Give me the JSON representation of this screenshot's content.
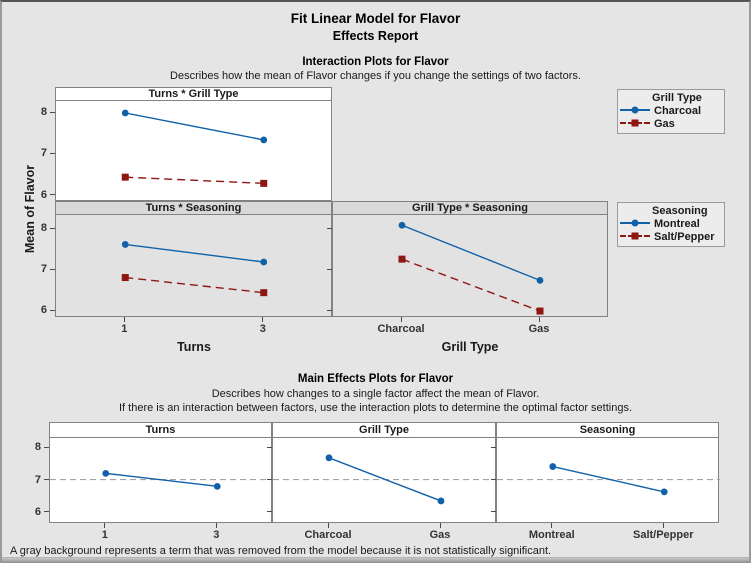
{
  "header": {
    "title": "Fit Linear Model for Flavor",
    "subtitle": "Effects Report"
  },
  "interaction": {
    "title": "Interaction Plots for Flavor",
    "description": "Describes how the mean of Flavor changes if you change the settings of two factors."
  },
  "main_effects": {
    "title": "Main Effects Plots for Flavor",
    "description1": "Describes how changes to a single factor affect the mean of Flavor.",
    "description2": "If there is an interaction between factors, use the interaction plots to determine the optimal factor settings."
  },
  "footnote": "A gray background represents a term that was removed from the model because it is not statistically significant.",
  "colors": {
    "series1": "#1161A8",
    "series2": "#8E1713",
    "reference_line": "#A3A3A3",
    "figure_bg": "#E5E5E5",
    "kept_panel_bg": "#FFFFFF",
    "removed_panel_bg": "#E2E2E2",
    "removed_band_bg": "#D9D9D9",
    "panel_border": "#828282"
  },
  "legends": [
    {
      "title": "Grill Type",
      "items": [
        {
          "label": "Charcoal",
          "marker": "circle",
          "line": "solid",
          "color_key": "series1"
        },
        {
          "label": "Gas",
          "marker": "square",
          "line": "dashed",
          "color_key": "series2"
        }
      ]
    },
    {
      "title": "Seasoning",
      "items": [
        {
          "label": "Montreal",
          "marker": "circle",
          "line": "solid",
          "color_key": "series1"
        },
        {
          "label": "Salt/Pepper",
          "marker": "square",
          "line": "dashed",
          "color_key": "series2"
        }
      ]
    }
  ],
  "chart_data": [
    {
      "id": "turns-grill-type",
      "type": "line",
      "title": "Turns * Grill Type",
      "categories": [
        "1",
        "3"
      ],
      "ylabel": "Mean of Flavor",
      "series": [
        {
          "name": "Charcoal",
          "values": [
            8.0,
            7.35
          ],
          "line": "solid",
          "marker": "circle"
        },
        {
          "name": "Gas",
          "values": [
            6.45,
            6.3
          ],
          "line": "dashed",
          "marker": "square"
        }
      ],
      "yticks": [
        6,
        7,
        8
      ],
      "ylim": [
        5.85,
        8.29
      ],
      "removed": false
    },
    {
      "id": "turns-seasoning",
      "type": "line",
      "title": "Turns * Seasoning",
      "categories": [
        "1",
        "3"
      ],
      "xlabel": "Turns",
      "series": [
        {
          "name": "Montreal",
          "values": [
            7.63,
            7.2
          ],
          "line": "solid",
          "marker": "circle"
        },
        {
          "name": "Salt/Pepper",
          "values": [
            6.82,
            6.45
          ],
          "line": "dashed",
          "marker": "square"
        }
      ],
      "yticks": [
        6,
        7,
        8
      ],
      "ylim": [
        5.83,
        8.35
      ],
      "removed": true
    },
    {
      "id": "grill-type-seasoning",
      "type": "line",
      "title": "Grill Type * Seasoning",
      "categories": [
        "Charcoal",
        "Gas"
      ],
      "xlabel": "Grill Type",
      "series": [
        {
          "name": "Montreal",
          "values": [
            8.1,
            6.75
          ],
          "line": "solid",
          "marker": "circle"
        },
        {
          "name": "Salt/Pepper",
          "values": [
            7.27,
            6.0
          ],
          "line": "dashed",
          "marker": "square"
        }
      ],
      "yticks": [
        6,
        7,
        8
      ],
      "ylim": [
        5.83,
        8.35
      ],
      "removed": true
    },
    {
      "id": "main-turns",
      "type": "line",
      "title": "Turns",
      "categories": [
        "1",
        "3"
      ],
      "series": [
        {
          "values": [
            7.22,
            6.82
          ],
          "line": "solid",
          "marker": "circle"
        }
      ],
      "reference_line": 7.03,
      "yticks": [
        6,
        7,
        8
      ],
      "ylim": [
        5.66,
        8.31
      ],
      "removed": false
    },
    {
      "id": "main-grill-type",
      "type": "line",
      "title": "Grill Type",
      "categories": [
        "Charcoal",
        "Gas"
      ],
      "series": [
        {
          "values": [
            7.7,
            6.37
          ],
          "line": "solid",
          "marker": "circle"
        }
      ],
      "reference_line": 7.03,
      "yticks": [
        6,
        7,
        8
      ],
      "ylim": [
        5.66,
        8.31
      ],
      "removed": false
    },
    {
      "id": "main-seasoning",
      "type": "line",
      "title": "Seasoning",
      "categories": [
        "Montreal",
        "Salt/Pepper"
      ],
      "series": [
        {
          "values": [
            7.43,
            6.65
          ],
          "line": "solid",
          "marker": "circle"
        }
      ],
      "reference_line": 7.03,
      "yticks": [
        6,
        7,
        8
      ],
      "ylim": [
        5.66,
        8.31
      ],
      "removed": false
    }
  ]
}
